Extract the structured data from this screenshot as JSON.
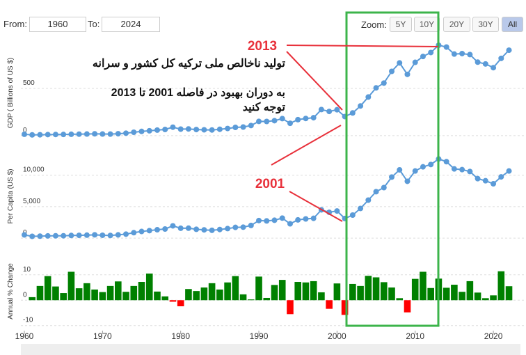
{
  "controls": {
    "from_label": "From:",
    "from": "1960",
    "to_label": "To:",
    "to": "2024",
    "zoom_label": "Zoom:",
    "zoom_buttons": [
      "5Y",
      "10Y",
      "20Y",
      "30Y",
      "All"
    ]
  },
  "annotations": {
    "label_2013": "2013",
    "label_2001": "2001",
    "line_1": "تولید ناخالص ملی ترکیه کل کشور و سرانه",
    "line_2": "به دوران بهبود در فاصله 2001 تا 2013",
    "line_3": "توجه کنید"
  },
  "chart_data": [
    {
      "type": "line",
      "ylabel": "GDP ( Billions of US $)",
      "color": "#5b9bd8",
      "grid": true,
      "xlim": [
        1960,
        2024
      ],
      "ylim": [
        -75,
        980
      ],
      "yticks": [
        0,
        500
      ],
      "x": [
        1960,
        1961,
        1962,
        1963,
        1964,
        1965,
        1966,
        1967,
        1968,
        1969,
        1970,
        1971,
        1972,
        1973,
        1974,
        1975,
        1976,
        1977,
        1978,
        1979,
        1980,
        1981,
        1982,
        1983,
        1984,
        1985,
        1986,
        1987,
        1988,
        1989,
        1990,
        1991,
        1992,
        1993,
        1994,
        1995,
        1996,
        1997,
        1998,
        1999,
        2000,
        2001,
        2002,
        2003,
        2004,
        2005,
        2006,
        2007,
        2008,
        2009,
        2010,
        2011,
        2012,
        2013,
        2014,
        2015,
        2016,
        2017,
        2018,
        2019,
        2020,
        2021,
        2022
      ],
      "series": [
        {
          "name": "GDP",
          "values": [
            14,
            8,
            9,
            11,
            11.9,
            12.4,
            14.2,
            15.5,
            17,
            19.3,
            17.1,
            16.3,
            20.4,
            25.7,
            35.6,
            44.6,
            51.3,
            58.7,
            65.1,
            89.4,
            68.8,
            71,
            64.5,
            61.7,
            59.9,
            67.2,
            75.7,
            87.2,
            90.9,
            107.1,
            150.7,
            150,
            158.5,
            180.2,
            130.7,
            169.5,
            181.5,
            189.8,
            275.9,
            256.4,
            274.3,
            201.8,
            240.3,
            314.6,
            408.9,
            506.3,
            557.1,
            681.3,
            770.5,
            649.3,
            776.9,
            838.8,
            880.6,
            957.8,
            938.9,
            864.3,
            869.7,
            858.9,
            778.5,
            759.9,
            720.3,
            819,
            905.5
          ]
        }
      ]
    },
    {
      "type": "line",
      "ylabel": "Per Capita (US $)",
      "color": "#5b9bd8",
      "grid": true,
      "xlim": [
        1960,
        2024
      ],
      "ylim": [
        -1100,
        14400
      ],
      "yticks": [
        0,
        {
          "value": 5000,
          "label": "5,000"
        },
        {
          "value": 10000,
          "label": "10,000"
        }
      ],
      "x": [
        1960,
        1961,
        1962,
        1963,
        1964,
        1965,
        1966,
        1967,
        1968,
        1969,
        1970,
        1971,
        1972,
        1973,
        1974,
        1975,
        1976,
        1977,
        1978,
        1979,
        1980,
        1981,
        1982,
        1983,
        1984,
        1985,
        1986,
        1987,
        1988,
        1989,
        1990,
        1991,
        1992,
        1993,
        1994,
        1995,
        1996,
        1997,
        1998,
        1999,
        2000,
        2001,
        2002,
        2003,
        2004,
        2005,
        2006,
        2007,
        2008,
        2009,
        2010,
        2011,
        2012,
        2013,
        2014,
        2015,
        2016,
        2017,
        2018,
        2019,
        2020,
        2021,
        2022
      ],
      "series": [
        {
          "name": "Per Capita",
          "values": [
            509,
            283,
            310,
            350,
            366,
            372,
            416,
            442,
            474,
            524,
            453,
            422,
            516,
            636,
            862,
            1057,
            1190,
            1333,
            1448,
            1948,
            1567,
            1579,
            1401,
            1310,
            1244,
            1368,
            1510,
            1705,
            1743,
            2015,
            2794,
            2735,
            2842,
            3180,
            2270,
            2897,
            3053,
            3144,
            4496,
            4109,
            4317,
            3120,
            3660,
            4718,
            6040,
            7384,
            8034,
            9709,
            10854,
            9036,
            10672,
            11336,
            11708,
            12582,
            12158,
            11006,
            10895,
            10590,
            9455,
            9122,
            8639,
            9743,
            10674
          ]
        }
      ]
    },
    {
      "type": "bar",
      "ylabel": "Annual % Change",
      "positive_color": "#008000",
      "negative_color": "#ff0000",
      "grid": true,
      "xlim": [
        1960,
        2024
      ],
      "ylim": [
        -12,
        19
      ],
      "yticks": [
        -10,
        0,
        10
      ],
      "xticks": [
        1960,
        1970,
        1980,
        1990,
        2000,
        2010,
        2020
      ],
      "x": [
        1960,
        1961,
        1962,
        1963,
        1964,
        1965,
        1966,
        1967,
        1968,
        1969,
        1970,
        1971,
        1972,
        1973,
        1974,
        1975,
        1976,
        1977,
        1978,
        1979,
        1980,
        1981,
        1982,
        1983,
        1984,
        1985,
        1986,
        1987,
        1988,
        1989,
        1990,
        1991,
        1992,
        1993,
        1994,
        1995,
        1996,
        1997,
        1998,
        1999,
        2000,
        2001,
        2002,
        2003,
        2004,
        2005,
        2006,
        2007,
        2008,
        2009,
        2010,
        2011,
        2012,
        2013,
        2014,
        2015,
        2016,
        2017,
        2018,
        2019,
        2020,
        2021,
        2022
      ],
      "series": [
        {
          "name": "Annual % Change",
          "values": [
            null,
            1.2,
            5.6,
            9.5,
            5.4,
            2.8,
            11.2,
            4.7,
            6.7,
            4.2,
            3.2,
            5.6,
            7.4,
            3.3,
            5.6,
            7.2,
            10.5,
            3.4,
            1.5,
            -0.6,
            -2.4,
            4.4,
            3.6,
            5.0,
            6.7,
            4.2,
            7.0,
            9.5,
            2.3,
            0.3,
            9.3,
            0.9,
            6.0,
            8.0,
            -5.5,
            7.2,
            7.0,
            7.5,
            3.1,
            -3.4,
            6.6,
            -5.8,
            6.4,
            5.6,
            9.6,
            9.0,
            7.1,
            5.0,
            0.8,
            -4.8,
            8.4,
            11.2,
            4.8,
            8.5,
            4.9,
            6.1,
            3.3,
            7.5,
            3.0,
            0.8,
            1.9,
            11.4,
            5.5
          ]
        }
      ]
    }
  ]
}
